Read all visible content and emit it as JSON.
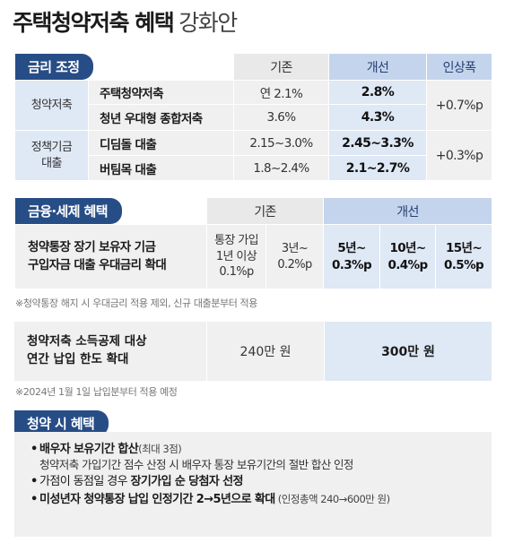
{
  "title": {
    "main": "주택청약저축 혜택",
    "sub": "강화안"
  },
  "section1": {
    "badge": "금리 조정",
    "headers": {
      "old": "기존",
      "new": "개선",
      "increase": "인상폭"
    },
    "groups": [
      {
        "category": "청약저축",
        "rows": [
          {
            "name": "주택청약저축",
            "old": "연 2.1%",
            "new": "2.8%"
          },
          {
            "name": "청년 우대형 종합저축",
            "old": "3.6%",
            "new": "4.3%"
          }
        ],
        "increase": "+0.7%p"
      },
      {
        "category_line1": "정책기금",
        "category_line2": "대출",
        "rows": [
          {
            "name": "디딤돌 대출",
            "old": "2.15~3.0%",
            "new": "2.45~3.3%"
          },
          {
            "name": "버팀목 대출",
            "old": "1.8~2.4%",
            "new": "2.1~2.7%"
          }
        ],
        "increase": "+0.3%p"
      }
    ]
  },
  "section2": {
    "badge": "금융·세제 혜택",
    "headers": {
      "old": "기존",
      "new": "개선"
    },
    "item": {
      "line1": "청약통장 장기 보유자 기금",
      "line2": "구입자금 대출 우대금리 확대"
    },
    "old_cells": [
      {
        "line1": "통장 가입",
        "line2": "1년 이상",
        "line3": "0.1%p"
      },
      {
        "line1": "3년~",
        "line2": "0.2%p"
      }
    ],
    "new_cells": [
      {
        "line1": "5년~",
        "line2": "0.3%p"
      },
      {
        "line1": "10년~",
        "line2": "0.4%p"
      },
      {
        "line1": "15년~",
        "line2": "0.5%p"
      }
    ],
    "note": "※청약통장 해지 시 우대금리 적용 제외, 신규 대출분부터 적용",
    "deduction": {
      "line1": "청약저축 소득공제 대상",
      "line2": "연간 납입 한도 확대",
      "old": "240만 원",
      "new": "300만 원"
    },
    "deduction_note": "※2024년 1월 1일 납입분부터 적용 예정"
  },
  "section3": {
    "badge": "청약 시 혜택",
    "bullets": [
      {
        "dot": "•",
        "bold": "배우자 보유기간 합산",
        "small": "(최대 3점)",
        "sub": "청약저축 가입기간 점수 산정 시 배우자 통장 보유기간의 절반 합산 인정"
      },
      {
        "dot": "•",
        "plain": "가점이 동점일 경우 ",
        "bold": "장기가입 순 당첨자 선정"
      },
      {
        "dot": "•",
        "bold": "미성년자 청약통장 납입 인정기간 2→5년으로 확대",
        "small": " (인정총액 240→600만 원)"
      }
    ]
  },
  "colors": {
    "badge": "#274d86",
    "header_highlight": "#c4d4ec",
    "cell_highlight": "#dfe8f5",
    "cell_gray": "#f0f0f0",
    "header_gray": "#e9e9e9"
  }
}
